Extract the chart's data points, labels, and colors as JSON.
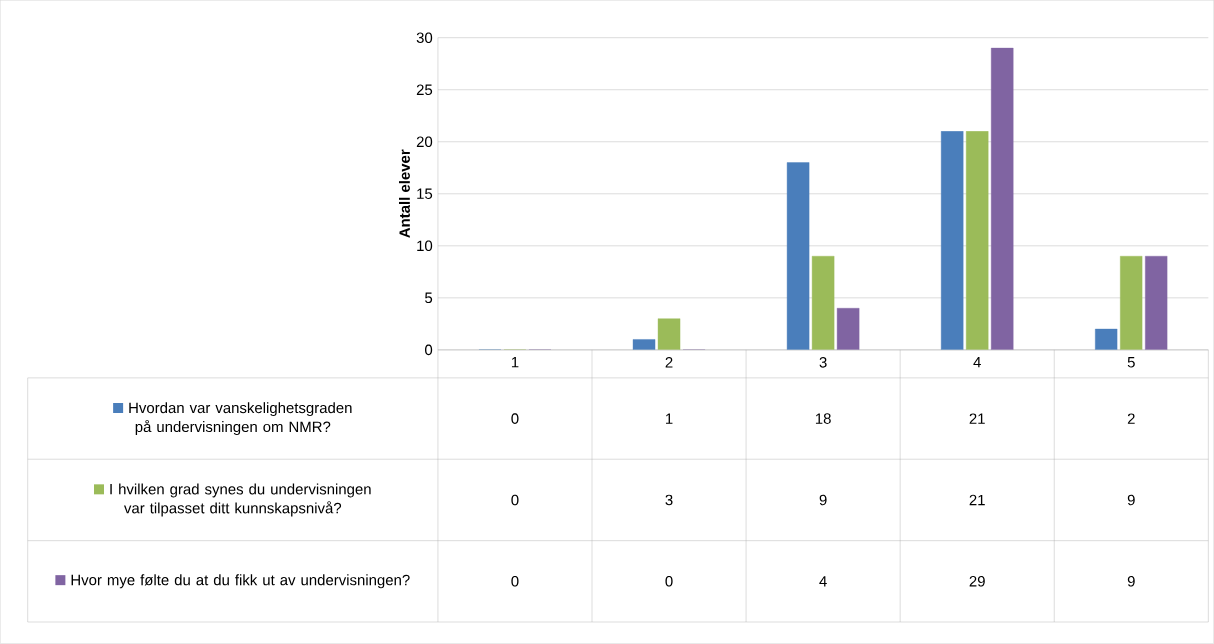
{
  "chart_data": {
    "type": "bar",
    "ylabel": "Antall elever",
    "categories": [
      "1",
      "2",
      "3",
      "4",
      "5"
    ],
    "series": [
      {
        "name": "Hvordan var vanskelighetsgraden på undervisningen om NMR?",
        "color": "#4a7ebb",
        "values": [
          0,
          1,
          18,
          21,
          2
        ]
      },
      {
        "name": "I hvilken grad synes du undervisningen var tilpasset ditt kunnskapsnivå?",
        "color": "#9bbb59",
        "values": [
          0,
          3,
          9,
          21,
          9
        ]
      },
      {
        "name": "Hvor mye følte du at du fikk ut av undervisningen?",
        "color": "#8064a2",
        "values": [
          0,
          0,
          4,
          29,
          9
        ]
      }
    ],
    "ylim": [
      0,
      30
    ],
    "yticks": [
      0,
      5,
      10,
      15,
      20,
      25,
      30
    ],
    "grid": "y",
    "legend": "bottom",
    "data_labels": true
  }
}
